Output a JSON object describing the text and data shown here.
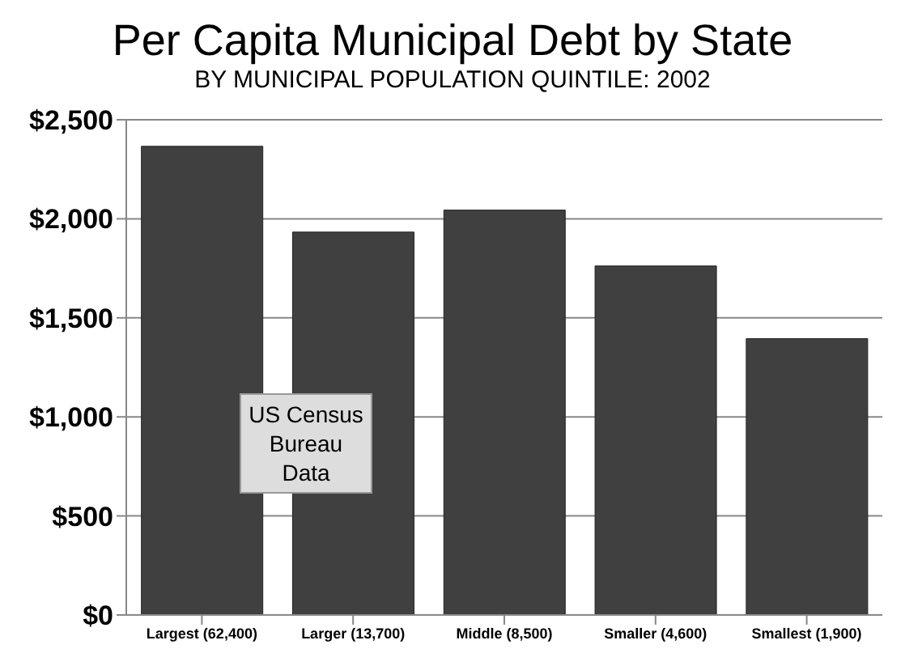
{
  "chart_data": {
    "type": "bar",
    "title": "Per Capita Municipal Debt by State",
    "subtitle": "BY MUNICIPAL POPULATION QUINTILE: 2002",
    "categories": [
      "Largest (62,400)",
      "Larger (13,700)",
      "Middle (8,500)",
      "Smaller (4,600)",
      "Smallest (1,900)"
    ],
    "values": [
      2366,
      1933,
      2044,
      1762,
      1395
    ],
    "color": "#404040",
    "ylim": [
      0,
      2500
    ],
    "yticks": [
      {
        "value": 0,
        "label": "$0"
      },
      {
        "value": 500,
        "label": "$500"
      },
      {
        "value": 1000,
        "label": "$1,000"
      },
      {
        "value": 1500,
        "label": "$1,500"
      },
      {
        "value": 2000,
        "label": "$2,000"
      },
      {
        "value": 2500,
        "label": "$2,500"
      }
    ],
    "grid": "y",
    "legend": false,
    "annotations": [
      "US Census Bureau Data"
    ]
  }
}
